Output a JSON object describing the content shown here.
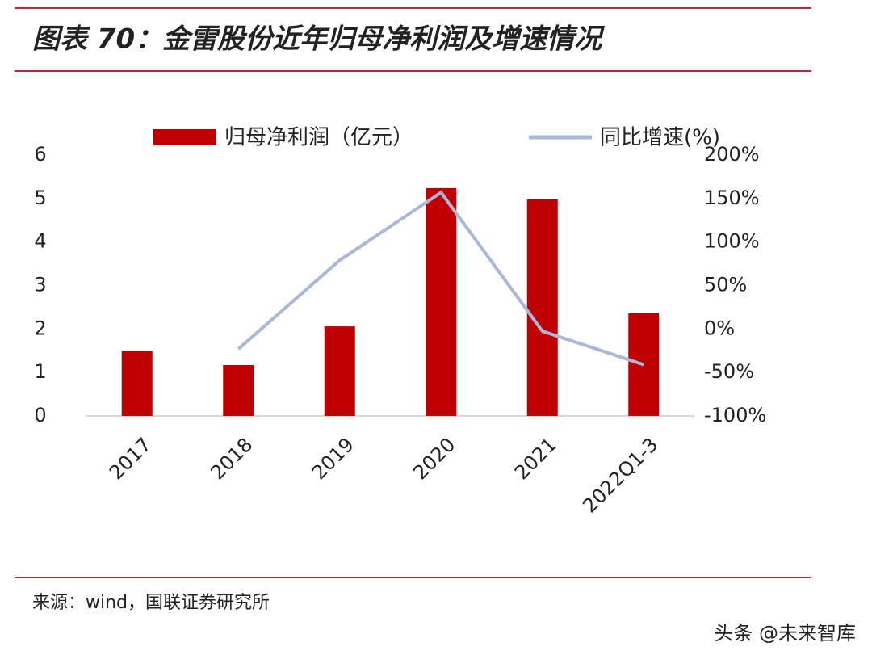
{
  "chart_data": {
    "type": "bar",
    "title": "图表 70：金雷股份近年归母净利润及增速情况",
    "source": "来源：wind，国联证券研究所",
    "watermark": "头条 @未来智库",
    "categories": [
      "2017",
      "2018",
      "2019",
      "2020",
      "2021",
      "2022Q1-3"
    ],
    "series": [
      {
        "name": "归母净利润（亿元）",
        "type": "bar",
        "color": "#c00000",
        "values": [
          1.5,
          1.17,
          2.06,
          5.24,
          4.98,
          2.36
        ]
      },
      {
        "name": "同比增速(%)",
        "type": "line",
        "axis": "y2",
        "color": "#a9b7d9",
        "values": [
          null,
          -23,
          79,
          157,
          -2.5,
          -41
        ]
      }
    ],
    "ylim": [
      0,
      6
    ],
    "yticks": [
      0,
      1,
      2,
      3,
      4,
      5,
      6
    ],
    "y2lim": [
      -100,
      200
    ],
    "y2ticks": [
      {
        "value": -100,
        "label": "-100%"
      },
      {
        "value": -50,
        "label": "-50%"
      },
      {
        "value": 0,
        "label": "0%"
      },
      {
        "value": 50,
        "label": "50%"
      },
      {
        "value": 100,
        "label": "100%"
      },
      {
        "value": 150,
        "label": "150%"
      },
      {
        "value": 200,
        "label": "200%"
      }
    ],
    "legend": "top"
  }
}
